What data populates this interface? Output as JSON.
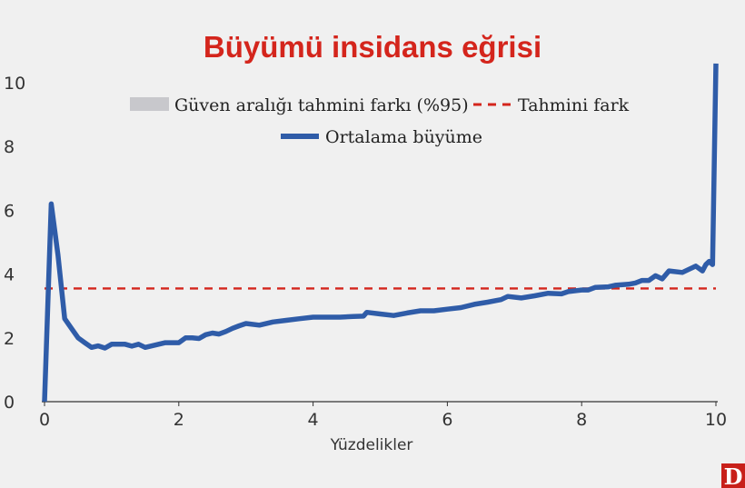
{
  "chart_data": {
    "type": "line",
    "title": "Büyümü insidans eğrisi",
    "xlabel": "Yüzdelikler",
    "ylabel": "",
    "xlim": [
      0,
      10
    ],
    "ylim": [
      0,
      10
    ],
    "xticks": [
      "0",
      "2",
      "4",
      "6",
      "8",
      "10"
    ],
    "yticks": [
      "0",
      "2",
      "4",
      "6",
      "8",
      "10"
    ],
    "grid": false,
    "legend_position": "top-center",
    "legend": {
      "band": "Güven aralığı tahmini farkı (%95)",
      "dashed": "Tahmini fark",
      "line": "Ortalama büyüme"
    },
    "reference_line": {
      "name": "Tahmini fark",
      "y": 3.55,
      "color": "#d4251c",
      "style": "dashed"
    },
    "series": [
      {
        "name": "Ortalama büyüme",
        "color": "#2f5ca8",
        "x": [
          0.0,
          0.1,
          0.2,
          0.3,
          0.4,
          0.5,
          0.6,
          0.7,
          0.8,
          0.9,
          1.0,
          1.1,
          1.2,
          1.3,
          1.4,
          1.5,
          1.6,
          1.7,
          1.8,
          1.9,
          2.0,
          2.1,
          2.2,
          2.3,
          2.4,
          2.5,
          2.6,
          2.7,
          2.8,
          2.9,
          3.0,
          3.2,
          3.4,
          3.6,
          3.8,
          4.0,
          4.2,
          4.4,
          4.6,
          4.75,
          4.8,
          5.0,
          5.2,
          5.4,
          5.6,
          5.8,
          6.0,
          6.2,
          6.4,
          6.6,
          6.8,
          6.9,
          7.1,
          7.3,
          7.5,
          7.7,
          7.8,
          8.0,
          8.1,
          8.2,
          8.4,
          8.5,
          8.7,
          8.8,
          8.9,
          9.0,
          9.1,
          9.2,
          9.3,
          9.5,
          9.7,
          9.8,
          9.85,
          9.9,
          9.95,
          10.0
        ],
        "values": [
          0.0,
          6.2,
          4.6,
          2.6,
          2.3,
          2.0,
          1.85,
          1.7,
          1.75,
          1.68,
          1.8,
          1.8,
          1.8,
          1.74,
          1.8,
          1.7,
          1.75,
          1.8,
          1.85,
          1.85,
          1.85,
          2.0,
          2.0,
          1.98,
          2.1,
          2.15,
          2.12,
          2.2,
          2.3,
          2.38,
          2.45,
          2.4,
          2.5,
          2.55,
          2.6,
          2.65,
          2.65,
          2.65,
          2.67,
          2.68,
          2.8,
          2.75,
          2.7,
          2.78,
          2.85,
          2.85,
          2.9,
          2.95,
          3.05,
          3.12,
          3.2,
          3.3,
          3.25,
          3.32,
          3.4,
          3.38,
          3.45,
          3.5,
          3.5,
          3.58,
          3.6,
          3.65,
          3.68,
          3.72,
          3.8,
          3.8,
          3.95,
          3.85,
          4.1,
          4.05,
          4.25,
          4.1,
          4.3,
          4.4,
          4.3,
          10.6
        ]
      }
    ]
  },
  "logo": {
    "letter": "D",
    "bg_color": "#c8201a"
  }
}
